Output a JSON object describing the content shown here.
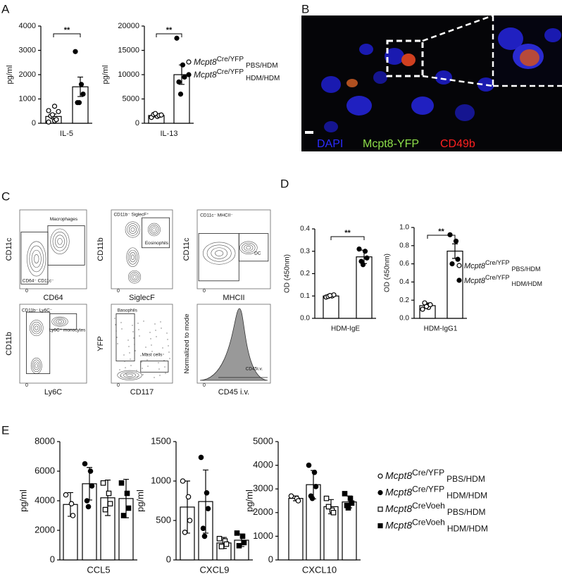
{
  "panel_letters": [
    "A",
    "B",
    "C",
    "D",
    "E"
  ],
  "microscopy": {
    "labels": [
      {
        "text": "DAPI",
        "color": "#2b2bff"
      },
      {
        "text": "Mcpt8-YFP",
        "color": "#8ee04a"
      },
      {
        "text": "CD49b",
        "color": "#ff2020"
      }
    ]
  },
  "flow": [
    {
      "x_label": "CD64",
      "y_label": "CD11c",
      "xticks": [
        0
      ],
      "gates": [
        "Macrophages",
        "CD64⁻ CD11c⁻"
      ]
    },
    {
      "x_label": "SiglecF",
      "y_label": "CD11b",
      "xticks": [
        0
      ],
      "gates": [
        "CD11b⁻ SiglecF⁺",
        "Eosinophils"
      ]
    },
    {
      "x_label": "MHCII",
      "y_label": "CD11c",
      "xticks": [
        0
      ],
      "gates": [
        "CD11c⁻ MHCII⁻",
        "DC"
      ]
    },
    {
      "x_label": "Ly6C",
      "y_label": "CD11b",
      "xticks": [
        0
      ],
      "gates": [
        "CD11b⁻ Ly6C⁻",
        "Ly6C⁺ monocytes"
      ]
    },
    {
      "x_label": "CD117",
      "y_label": "YFP",
      "xticks": [
        0
      ],
      "gates": [
        "Basophils",
        "Mast cells"
      ]
    },
    {
      "x_label": "CD45 i.v.",
      "y_label": "Normalized to mode",
      "xticks": [
        0
      ],
      "gates": [
        "CD45i.v."
      ]
    }
  ],
  "chart_data": [
    {
      "type": "bar",
      "y_label": "pg/ml",
      "categories": [
        "IL-5"
      ],
      "ylim": [
        0,
        4000
      ],
      "yticks": [
        0,
        1000,
        2000,
        3000,
        4000
      ],
      "significance": "**",
      "series": [
        {
          "name": "PBS/HDM",
          "marker": "circle",
          "color": "#ffffff",
          "values": [
            280
          ],
          "errors": [
            100
          ],
          "points": [
            [
              50,
              100,
              150,
              300,
              350,
              480,
              520,
              700
            ]
          ]
        },
        {
          "name": "HDM/HDM",
          "marker": "circle",
          "color": "#000000",
          "values": [
            1500
          ],
          "errors": [
            400
          ],
          "points": [
            [
              2950,
              1600,
              1200,
              850,
              850
            ]
          ]
        }
      ]
    },
    {
      "type": "bar",
      "y_label": "pg/ml",
      "categories": [
        "IL-13"
      ],
      "ylim": [
        0,
        20000
      ],
      "yticks": [
        0,
        5000,
        10000,
        15000,
        20000
      ],
      "significance": "**",
      "legend_gene": "Mcpt8",
      "series": [
        {
          "name": "PBS/HDM",
          "genotype": "Cre/YFP",
          "marker": "circle",
          "color": "#ffffff",
          "values": [
            1600
          ],
          "errors": [
            300
          ],
          "points": [
            [
              1200,
              1400,
              1600,
              1800,
              2000,
              1700
            ]
          ]
        },
        {
          "name": "HDM/HDM",
          "genotype": "Cre/YFP",
          "marker": "circle",
          "color": "#000000",
          "values": [
            10000
          ],
          "errors": [
            2000
          ],
          "points": [
            [
              17500,
              12000,
              9500,
              8500,
              6000
            ]
          ]
        }
      ]
    },
    {
      "type": "bar",
      "y_label": "OD (450nm)",
      "categories": [
        "HDM-IgE"
      ],
      "ylim": [
        0,
        0.4
      ],
      "yticks": [
        {
          "value": 0,
          "label": "0.0"
        },
        0.1,
        0.2,
        0.3,
        0.4
      ],
      "significance": "**",
      "series": [
        {
          "name": "PBS/HDM",
          "marker": "circle",
          "color": "#ffffff",
          "values": [
            0.1
          ],
          "errors": [
            0.005
          ],
          "points": [
            [
              0.095,
              0.1,
              0.105,
              0.098,
              0.102
            ]
          ]
        },
        {
          "name": "HDM/HDM",
          "marker": "circle",
          "color": "#000000",
          "values": [
            0.275
          ],
          "errors": [
            0.03
          ],
          "points": [
            [
              0.31,
              0.3,
              0.27,
              0.255,
              0.24
            ]
          ]
        }
      ]
    },
    {
      "type": "bar",
      "y_label": "OD (450nm)",
      "categories": [
        "HDM-IgG1"
      ],
      "ylim": [
        0,
        1
      ],
      "yticks": [
        {
          "value": 0,
          "label": "0.0"
        },
        0.2,
        0.4,
        0.6,
        0.8,
        {
          "value": 1,
          "label": "1.0"
        }
      ],
      "significance": "**",
      "legend_gene": "Mcpt8",
      "series": [
        {
          "name": "PBS/HDM",
          "genotype": "Cre/YFP",
          "marker": "circle",
          "color": "#ffffff",
          "values": [
            0.14
          ],
          "errors": [
            0.03
          ],
          "points": [
            [
              0.1,
              0.12,
              0.15,
              0.17,
              0.13
            ]
          ]
        },
        {
          "name": "HDM/HDM",
          "genotype": "Cre/YFP",
          "marker": "circle",
          "color": "#000000",
          "values": [
            0.74
          ],
          "errors": [
            0.08
          ],
          "points": [
            [
              0.92,
              0.85,
              0.65,
              0.6
            ]
          ]
        }
      ]
    },
    {
      "type": "bar",
      "y_label": "pg/ml",
      "categories": [
        "CCL5"
      ],
      "ylim": [
        0,
        8000
      ],
      "yticks": [
        0,
        2000,
        4000,
        6000,
        8000
      ],
      "series": [
        {
          "name": "PBS/HDM",
          "marker": "circle",
          "color": "#ffffff",
          "values": [
            3750
          ],
          "errors": [
            800
          ],
          "points": [
            [
              4400,
              3800,
              3000
            ]
          ]
        },
        {
          "name": "HDM/HDM",
          "marker": "circle",
          "color": "#000000",
          "values": [
            5150
          ],
          "errors": [
            1100
          ],
          "points": [
            [
              6500,
              6000,
              5000,
              4000,
              3600
            ]
          ]
        },
        {
          "name": "PBS/HDM",
          "marker": "square",
          "color": "#ffffff",
          "values": [
            4200
          ],
          "errors": [
            1200
          ],
          "points": [
            [
              5200,
              4500,
              3800,
              3400
            ]
          ]
        },
        {
          "name": "HDM/HDM",
          "marker": "square",
          "color": "#000000",
          "values": [
            4150
          ],
          "errors": [
            1300
          ],
          "points": [
            [
              5200,
              4500,
              3500,
              3000
            ]
          ]
        }
      ]
    },
    {
      "type": "bar",
      "y_label": "pg/ml",
      "categories": [
        "CXCL9"
      ],
      "ylim": [
        0,
        1500
      ],
      "yticks": [
        0,
        500,
        1000,
        1500
      ],
      "series": [
        {
          "name": "PBS/HDM",
          "marker": "circle",
          "color": "#ffffff",
          "values": [
            670
          ],
          "errors": [
            330
          ],
          "points": [
            [
              1000,
              800,
              500,
              350
            ]
          ]
        },
        {
          "name": "HDM/HDM",
          "marker": "circle",
          "color": "#000000",
          "values": [
            740
          ],
          "errors": [
            400
          ],
          "points": [
            [
              1300,
              850,
              650,
              400,
              300
            ]
          ]
        },
        {
          "name": "PBS/HDM",
          "marker": "square",
          "color": "#ffffff",
          "values": [
            215
          ],
          "errors": [
            70
          ],
          "points": [
            [
              270,
              240,
              200,
              170
            ]
          ]
        },
        {
          "name": "HDM/HDM",
          "marker": "square",
          "color": "#000000",
          "values": [
            250
          ],
          "errors": [
            80
          ],
          "points": [
            [
              340,
              300,
              220,
              180
            ]
          ]
        }
      ]
    },
    {
      "type": "bar",
      "y_label": "pg/ml",
      "categories": [
        "CXCL10"
      ],
      "ylim": [
        0,
        5000
      ],
      "yticks": [
        0,
        1000,
        2000,
        3000,
        4000,
        5000
      ],
      "legend_gene": "Mcpt8",
      "series": [
        {
          "name": "PBS/HDM",
          "genotype": "Cre/YFP",
          "marker": "circle",
          "color": "#ffffff",
          "values": [
            2600
          ],
          "errors": [
            100
          ],
          "points": [
            [
              2700,
              2600,
              2500
            ]
          ]
        },
        {
          "name": "HDM/HDM",
          "genotype": "Cre/YFP",
          "marker": "circle",
          "color": "#000000",
          "values": [
            3180
          ],
          "errors": [
            600
          ],
          "points": [
            [
              4000,
              3700,
              3100,
              2700,
              2600
            ]
          ]
        },
        {
          "name": "PBS/HDM",
          "genotype": "CreVoeh",
          "marker": "square",
          "color": "#ffffff",
          "values": [
            2250
          ],
          "errors": [
            300
          ],
          "points": [
            [
              2600,
              2100,
              2000,
              2250
            ]
          ]
        },
        {
          "name": "HDM/HDM",
          "genotype": "CreVoeh",
          "marker": "square",
          "color": "#000000",
          "values": [
            2450
          ],
          "errors": [
            250
          ],
          "points": [
            [
              2800,
              2600,
              2400,
              2300,
              2200
            ]
          ]
        }
      ]
    }
  ]
}
